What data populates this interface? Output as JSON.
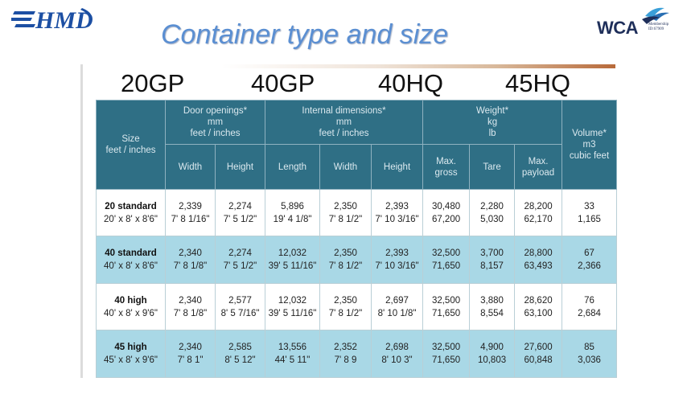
{
  "brand": {
    "logo_left_icon": "hmd-logo-icon",
    "logo_right_icon": "wca-bird-icon",
    "wca_text": "WCA",
    "wca_membership": "Membership",
    "wca_id": "ID:67909"
  },
  "page": {
    "title": "Container type and size"
  },
  "sizes": [
    "20GP",
    "40GP",
    "40HQ",
    "45HQ"
  ],
  "table": {
    "header": {
      "size": "Size feet / inches",
      "door": "Door openings* mm feet / inches",
      "internal": "Internal dimensions* mm feet / inches",
      "weight": "Weight* kg lb",
      "volume": "Volume* m3 cubic feet",
      "sub": [
        "Width",
        "Height",
        "Length",
        "Width",
        "Height",
        "Max. gross",
        "Tare",
        "Max. payload"
      ]
    },
    "rows": [
      {
        "name": "20 standard",
        "dims": "20' x 8' x 8'6\"",
        "cells": [
          [
            "2,339",
            "7' 8 1/16\""
          ],
          [
            "2,274",
            "7' 5 1/2\""
          ],
          [
            "5,896",
            "19' 4 1/8\""
          ],
          [
            "2,350",
            "7' 8 1/2\""
          ],
          [
            "2,393",
            "7' 10 3/16\""
          ],
          [
            "30,480",
            "67,200"
          ],
          [
            "2,280",
            "5,030"
          ],
          [
            "28,200",
            "62,170"
          ],
          [
            "33",
            "1,165"
          ]
        ]
      },
      {
        "name": "40 standard",
        "dims": "40' x 8' x 8'6\"",
        "cells": [
          [
            "2,340",
            "7' 8 1/8\""
          ],
          [
            "2,274",
            "7' 5 1/2\""
          ],
          [
            "12,032",
            "39' 5 11/16\""
          ],
          [
            "2,350",
            "7' 8 1/2\""
          ],
          [
            "2,393",
            "7' 10 3/16\""
          ],
          [
            "32,500",
            "71,650"
          ],
          [
            "3,700",
            "8,157"
          ],
          [
            "28,800",
            "63,493"
          ],
          [
            "67",
            "2,366"
          ]
        ]
      },
      {
        "name": "40 high",
        "dims": "40' x 8' x 9'6\"",
        "cells": [
          [
            "2,340",
            "7' 8 1/8\""
          ],
          [
            "2,577",
            "8' 5 7/16\""
          ],
          [
            "12,032",
            "39' 5 11/16\""
          ],
          [
            "2,350",
            "7' 8 1/2\""
          ],
          [
            "2,697",
            "8' 10 1/8\""
          ],
          [
            "32,500",
            "71,650"
          ],
          [
            "3,880",
            "8,554"
          ],
          [
            "28,620",
            "63,100"
          ],
          [
            "76",
            "2,684"
          ]
        ]
      },
      {
        "name": "45 high",
        "dims": "45' x 8' x 9'6\"",
        "cells": [
          [
            "2,340",
            "7' 8 1\""
          ],
          [
            "2,585",
            "8' 5 12\""
          ],
          [
            "13,556",
            "44' 5 11\""
          ],
          [
            "2,352",
            "7' 8 9"
          ],
          [
            "2,698",
            "8' 10 3\""
          ],
          [
            "32,500",
            "71,650"
          ],
          [
            "4,900",
            "10,803"
          ],
          [
            "27,600",
            "60,848"
          ],
          [
            "85",
            "3,036"
          ]
        ]
      }
    ]
  },
  "colors": {
    "header_bg": "#2f6f85",
    "header_text": "#dbe9ef",
    "row_alt": "#a9d8e6",
    "title": "#5b8fd2"
  }
}
